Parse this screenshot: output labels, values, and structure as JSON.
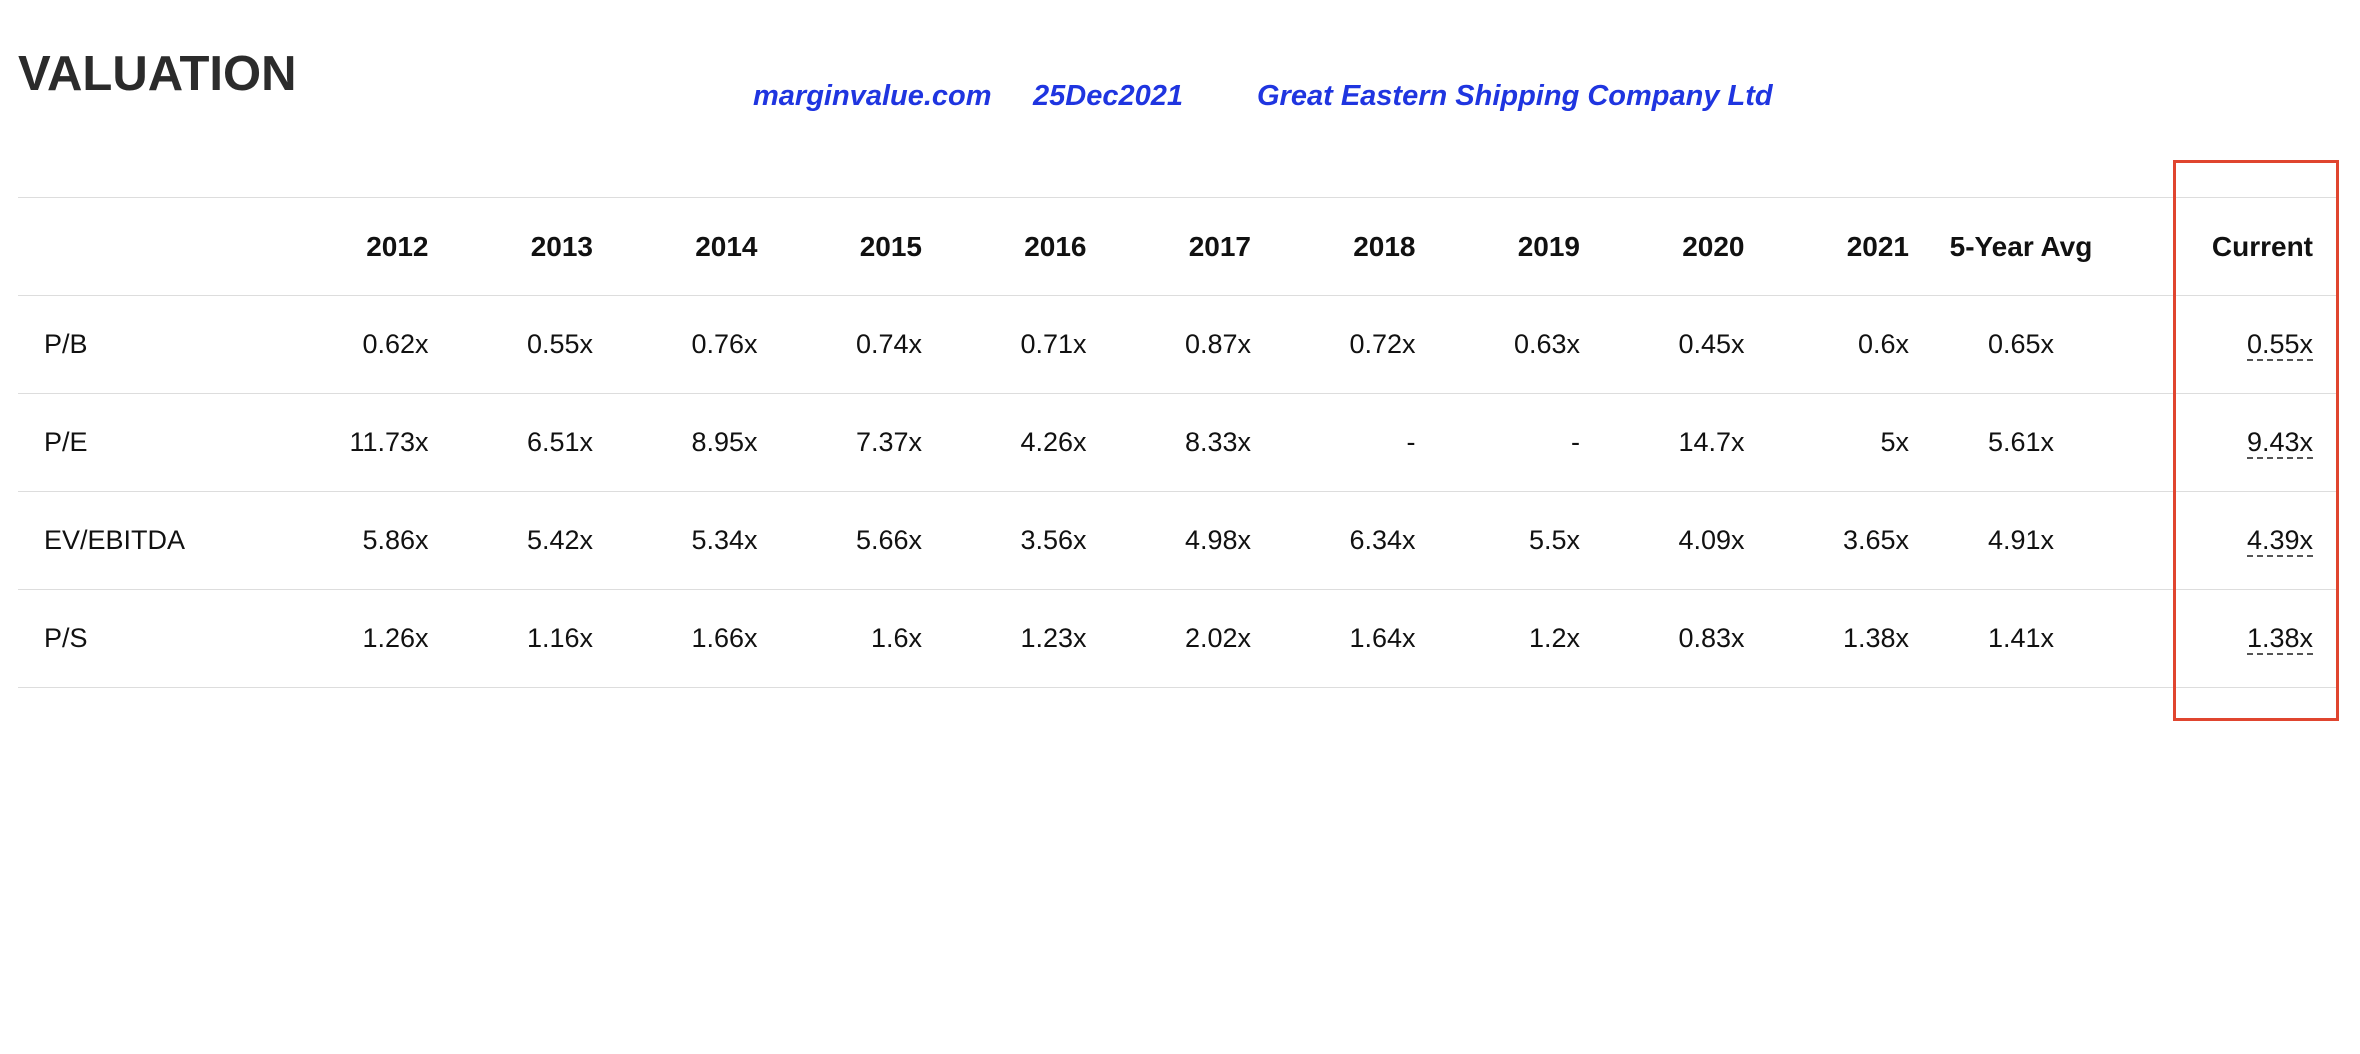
{
  "header": {
    "title": "VALUATION",
    "site": "marginvalue.com",
    "date": "25Dec2021",
    "company": "Great Eastern Shipping Company Ltd"
  },
  "table": {
    "columns": [
      "",
      "2012",
      "2013",
      "2014",
      "2015",
      "2016",
      "2017",
      "2018",
      "2019",
      "2020",
      "2021",
      "5-Year Avg",
      "Current"
    ],
    "rows": [
      [
        "P/B",
        "0.62x",
        "0.55x",
        "0.76x",
        "0.74x",
        "0.71x",
        "0.87x",
        "0.72x",
        "0.63x",
        "0.45x",
        "0.6x",
        "0.65x",
        "0.55x"
      ],
      [
        "P/E",
        "11.73x",
        "6.51x",
        "8.95x",
        "7.37x",
        "4.26x",
        "8.33x",
        "-",
        "-",
        "14.7x",
        "5x",
        "5.61x",
        "9.43x"
      ],
      [
        "EV/EBITDA",
        "5.86x",
        "5.42x",
        "5.34x",
        "5.66x",
        "3.56x",
        "4.98x",
        "6.34x",
        "5.5x",
        "4.09x",
        "3.65x",
        "4.91x",
        "4.39x"
      ],
      [
        "P/S",
        "1.26x",
        "1.16x",
        "1.66x",
        "1.6x",
        "1.23x",
        "2.02x",
        "1.64x",
        "1.2x",
        "0.83x",
        "1.38x",
        "1.41x",
        "1.38x"
      ]
    ]
  }
}
